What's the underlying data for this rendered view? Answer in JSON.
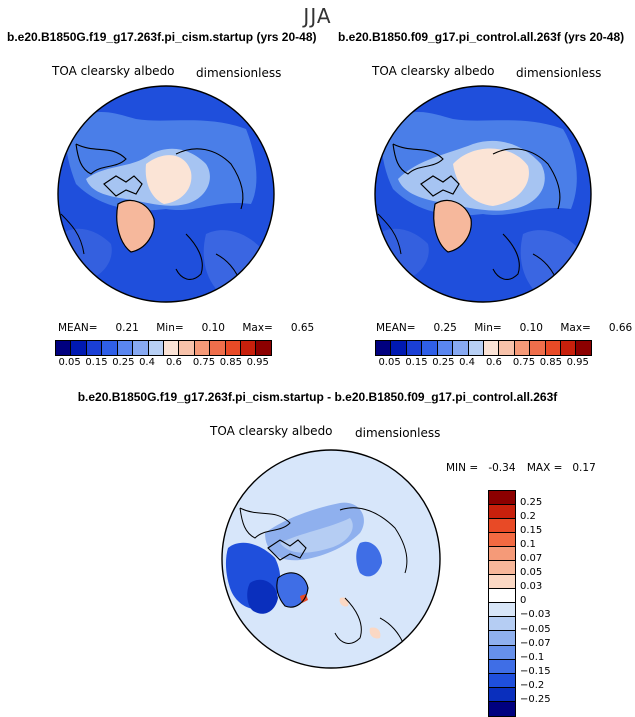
{
  "season": "JJA",
  "panels": [
    {
      "title": "b.e20.B1850G.f19_g17.263f.pi_cism.startup (yrs 20-48)",
      "variable": "TOA clearsky albedo",
      "units": "dimensionless",
      "mean_label": "MEAN=",
      "mean": "0.21",
      "min_label": "Min=",
      "min": "0.10",
      "max_label": "Max=",
      "max": "0.65"
    },
    {
      "title": "b.e20.B1850.f09_g17.pi_control.all.263f (yrs 20-48)",
      "variable": "TOA clearsky albedo",
      "units": "dimensionless",
      "mean_label": "MEAN=",
      "mean": "0.25",
      "min_label": "Min=",
      "min": "0.10",
      "max_label": "Max=",
      "max": "0.66"
    }
  ],
  "colorbar_top": {
    "ticks": [
      "0.05",
      "0.15",
      "0.25",
      "0.4",
      "0.6",
      "0.75",
      "0.85",
      "0.95"
    ],
    "colors": [
      "#00007f",
      "#0019b2",
      "#1a3fd6",
      "#2f5fe8",
      "#5a86f0",
      "#87a9f2",
      "#b8d0f5",
      "#fbe3d6",
      "#f7c2aa",
      "#f59a78",
      "#ef6e4b",
      "#e84a26",
      "#c8200c",
      "#8c0000"
    ]
  },
  "diff_panel": {
    "title": "b.e20.B1850G.f19_g17.263f.pi_cism.startup - b.e20.B1850.f09_g17.pi_control.all.263f",
    "variable": "TOA clearsky albedo",
    "units": "dimensionless",
    "min_label": "MIN =",
    "min": "-0.34",
    "max_label": "MAX =",
    "max": "0.17"
  },
  "colorbar_diff": {
    "ticks": [
      "0.25",
      "0.2",
      "0.15",
      "0.1",
      "0.07",
      "0.05",
      "0.03",
      "0",
      "−0.03",
      "−0.05",
      "−0.07",
      "−0.1",
      "−0.15",
      "−0.2",
      "−0.25"
    ],
    "colors": [
      "#8c0000",
      "#c8200c",
      "#e84a26",
      "#f26a42",
      "#f59a78",
      "#f7b79a",
      "#fbd8c4",
      "#ffffff",
      "#d8e6f8",
      "#b5cdf3",
      "#8fb0ee",
      "#6690ea",
      "#3f6ee6",
      "#1f4fdc",
      "#0a2fbd",
      "#00007f"
    ]
  },
  "colors": {
    "ocean_blue": "#1f4fdc",
    "mid_blue": "#4a7ee8",
    "light_blue": "#a6c4f2",
    "pale": "#fbe4d6",
    "salmon": "#f6b89c",
    "diff_background": "#d7e6fa",
    "coast": "#000000"
  }
}
